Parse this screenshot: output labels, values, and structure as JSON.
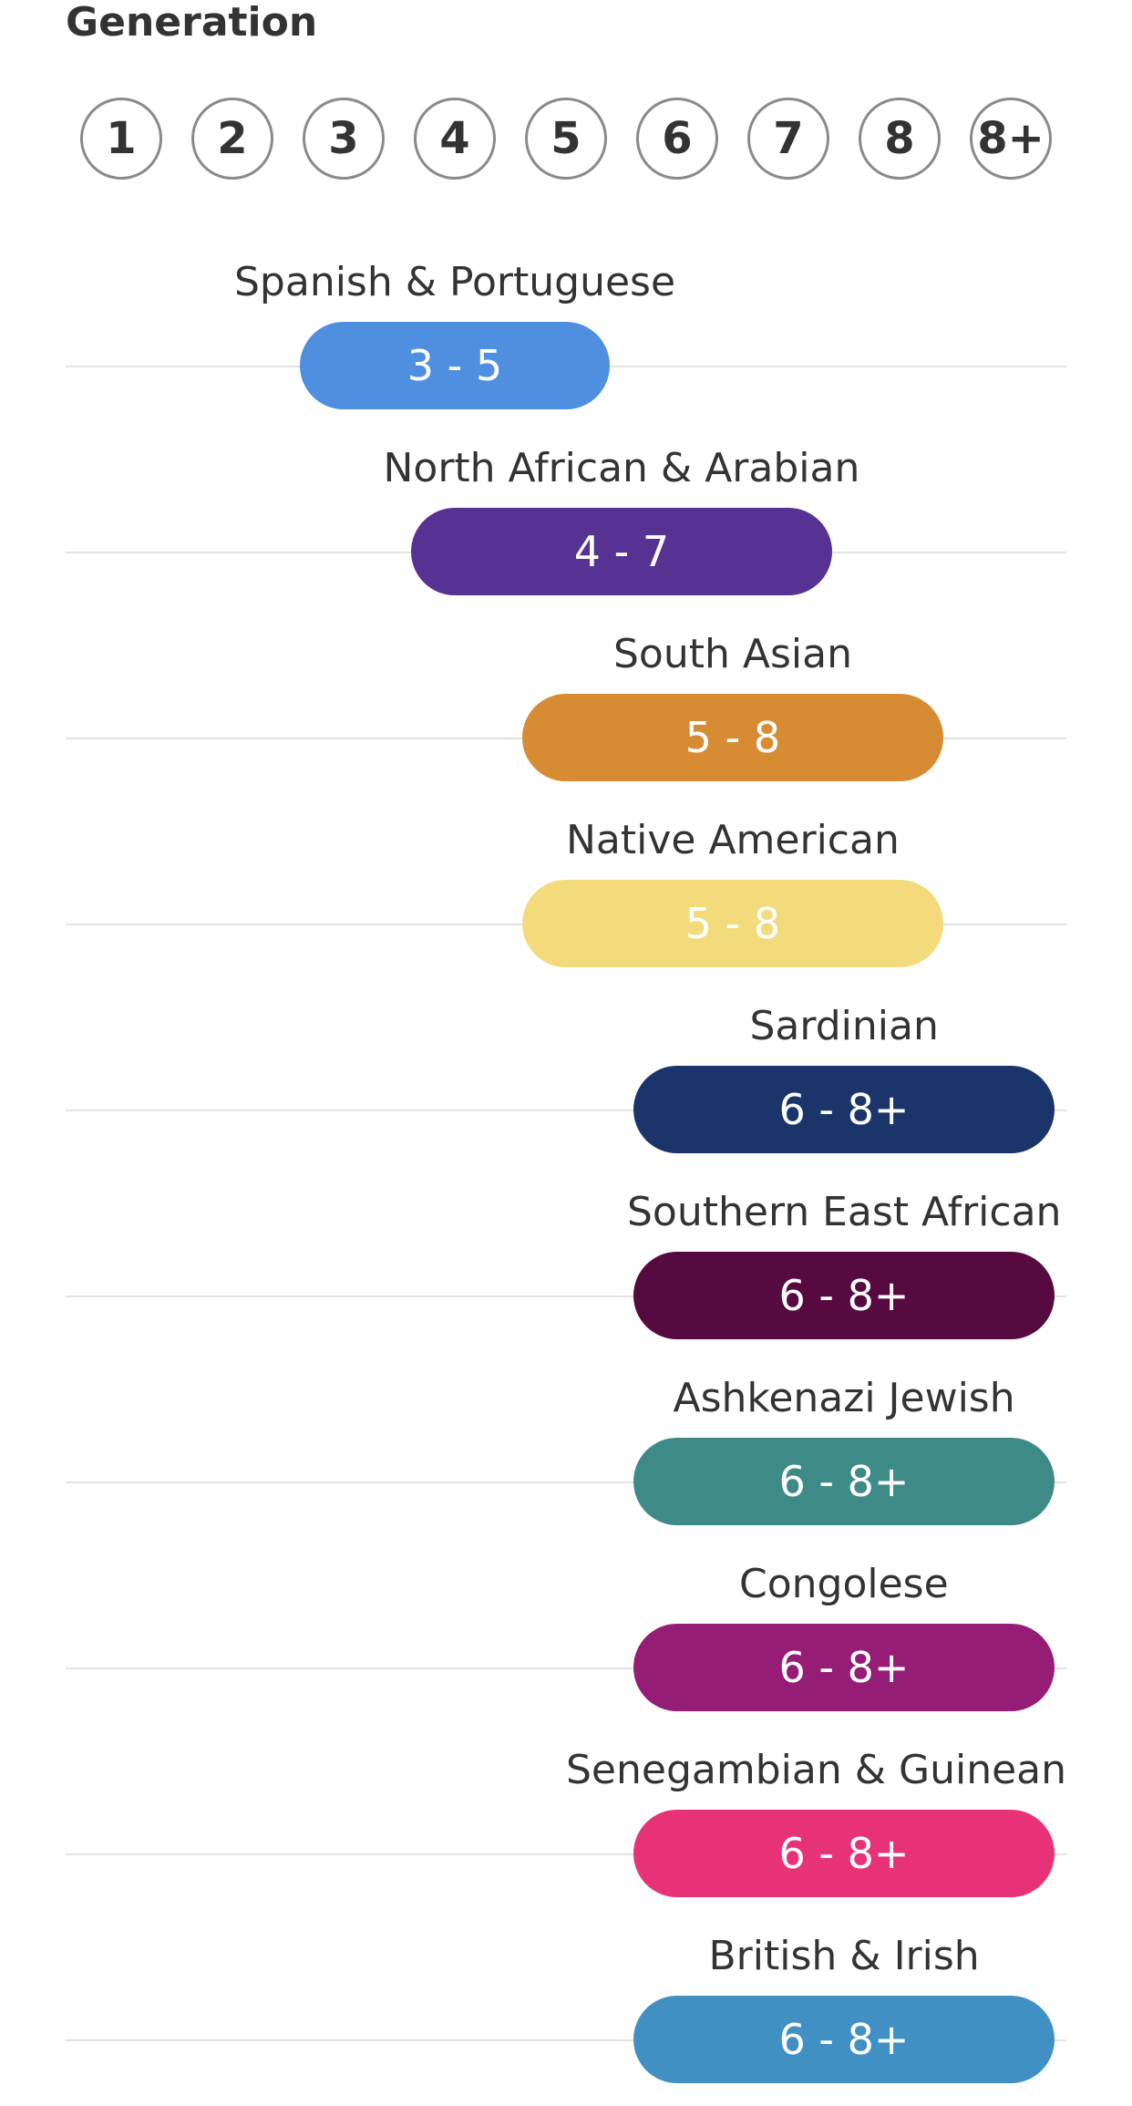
{
  "header": {
    "title": "Generation"
  },
  "generations": [
    "1",
    "2",
    "3",
    "4",
    "5",
    "6",
    "7",
    "8",
    "8+"
  ],
  "rows": [
    {
      "label": "Spanish & Portuguese",
      "range": "3 - 5",
      "start": 3,
      "end": 5,
      "color": "#4f8fe0"
    },
    {
      "label": "North African & Arabian",
      "range": "4 - 7",
      "start": 4,
      "end": 7,
      "color": "#563293"
    },
    {
      "label": "South Asian",
      "range": "5 - 8",
      "start": 5,
      "end": 8,
      "color": "#d78c33"
    },
    {
      "label": "Native American",
      "range": "5 - 8",
      "start": 5,
      "end": 8,
      "color": "#f3db7c"
    },
    {
      "label": "Sardinian",
      "range": "6 - 8+",
      "start": 6,
      "end": 9,
      "color": "#1b356b"
    },
    {
      "label": "Southern East African",
      "range": "6 - 8+",
      "start": 6,
      "end": 9,
      "color": "#560a40"
    },
    {
      "label": "Ashkenazi Jewish",
      "range": "6 - 8+",
      "start": 6,
      "end": 9,
      "color": "#3e8a87"
    },
    {
      "label": "Congolese",
      "range": "6 - 8+",
      "start": 6,
      "end": 9,
      "color": "#951d76"
    },
    {
      "label": "Senegambian & Guinean",
      "range": "6 - 8+",
      "start": 6,
      "end": 9,
      "color": "#e83278"
    },
    {
      "label": "British & Irish",
      "range": "6 - 8+",
      "start": 6,
      "end": 9,
      "color": "#4190c4"
    }
  ]
}
